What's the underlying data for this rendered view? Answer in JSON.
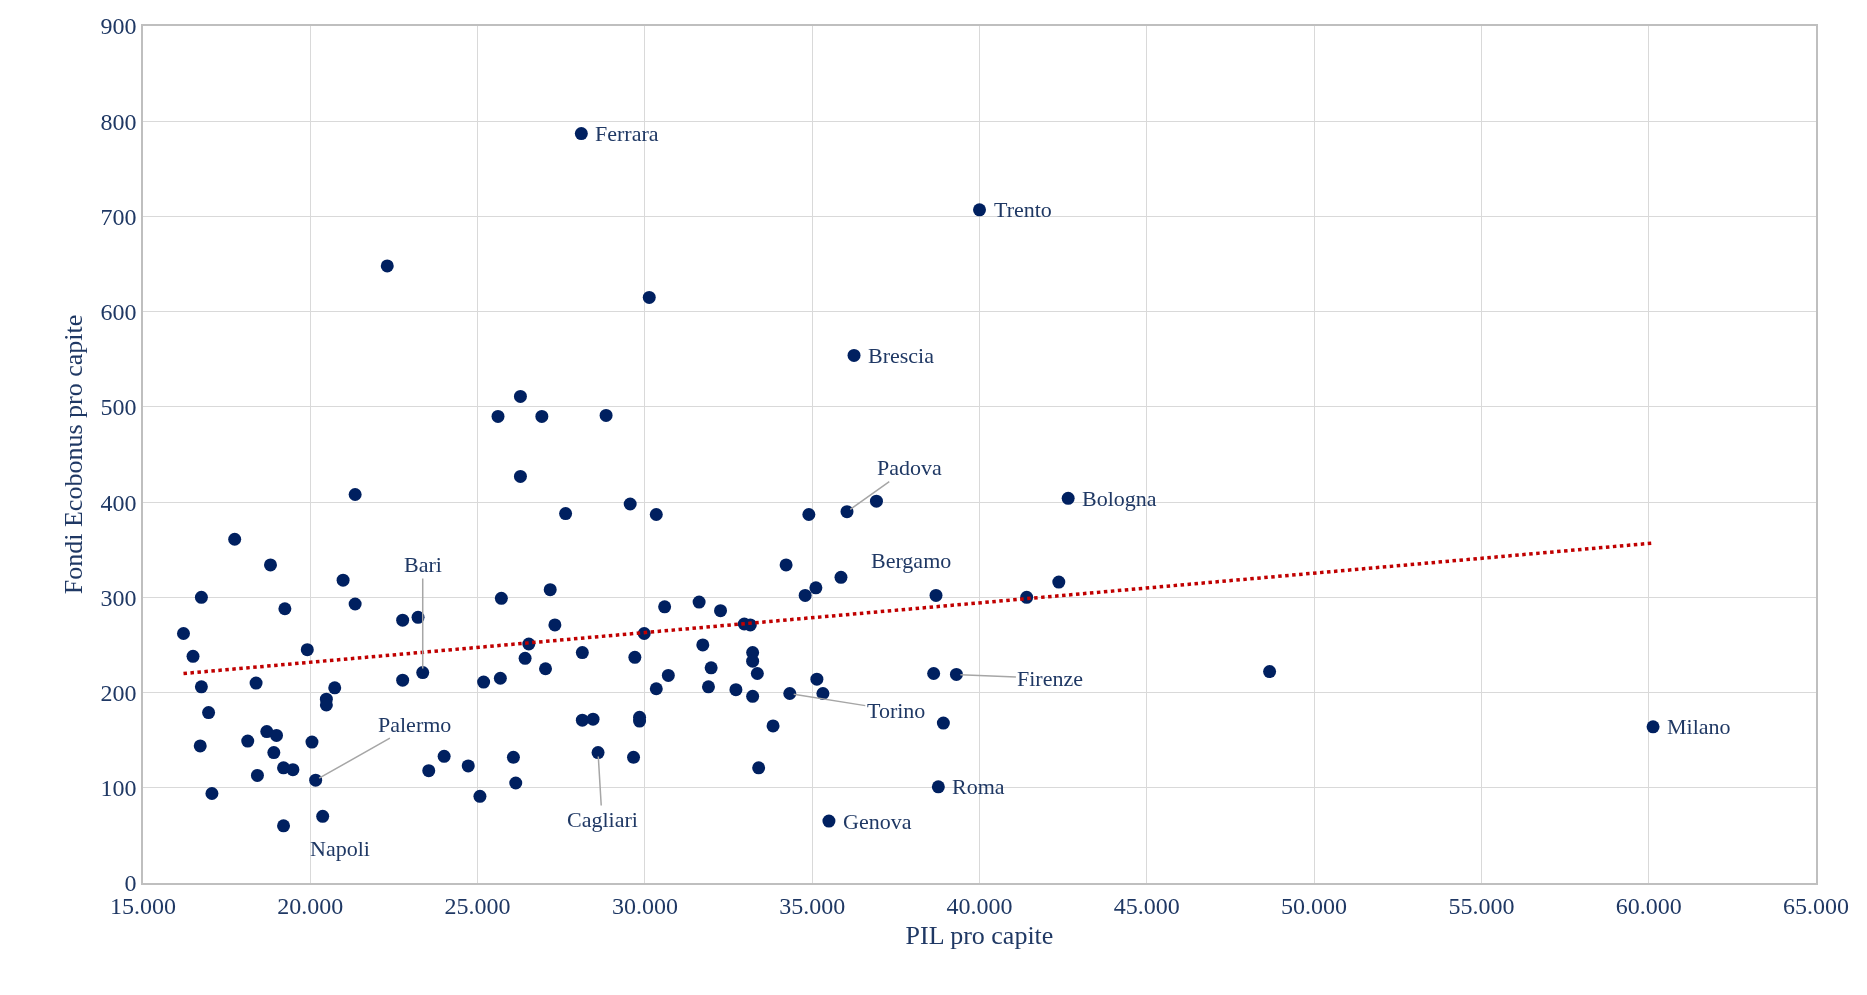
{
  "chart_data": {
    "type": "scatter",
    "xlabel": "PIL pro capite",
    "ylabel": "Fondi Ecobonus pro capite",
    "xlim": [
      15000,
      65000
    ],
    "ylim": [
      0,
      900
    ],
    "xticks": [
      {
        "value": 15000,
        "label": "15.000"
      },
      {
        "value": 20000,
        "label": "20.000"
      },
      {
        "value": 25000,
        "label": "25.000"
      },
      {
        "value": 30000,
        "label": "30.000"
      },
      {
        "value": 35000,
        "label": "35.000"
      },
      {
        "value": 40000,
        "label": "40.000"
      },
      {
        "value": 45000,
        "label": "45.000"
      },
      {
        "value": 50000,
        "label": "50.000"
      },
      {
        "value": 55000,
        "label": "55.000"
      },
      {
        "value": 60000,
        "label": "60.000"
      },
      {
        "value": 65000,
        "label": "65.000"
      }
    ],
    "yticks": [
      0,
      100,
      200,
      300,
      400,
      500,
      600,
      700,
      800,
      900
    ],
    "grid": true,
    "marker": "circle",
    "series": [
      {
        "color": "#002060",
        "x": [
          16210,
          16495,
          16745,
          16745,
          16710,
          16960,
          17060,
          17740,
          18130,
          18380,
          18420,
          18700,
          18810,
          18910,
          18990,
          19200,
          19240,
          19200,
          19480,
          19910,
          20050,
          20160,
          20370,
          20480,
          20480,
          20730,
          20980,
          21340,
          21340,
          22300,
          22760,
          22760,
          23220,
          23360,
          23540,
          24000,
          24720,
          25070,
          25180,
          25610,
          25680,
          25710,
          26070,
          26140,
          26280,
          26280,
          26420,
          26530,
          26920,
          27030,
          27170,
          27310,
          27630,
          28100,
          28130,
          28130,
          28450,
          28600,
          28840,
          29560,
          29700,
          29660,
          29840,
          29840,
          29980,
          30130,
          30340,
          30340,
          30590,
          30700,
          31620,
          31730,
          31900,
          31980,
          32260,
          32720,
          32970,
          33150,
          33220,
          33220,
          33220,
          33360,
          33400,
          33830,
          34330,
          34220,
          34790,
          34900,
          35110,
          35140,
          35320,
          35500,
          35860,
          36040,
          36920,
          36250,
          38700,
          38630,
          38770,
          38920,
          39310,
          40000,
          41410,
          42370,
          42650,
          48670,
          60130
        ],
        "values": [
          262,
          238,
          300,
          206,
          144,
          179,
          94,
          361,
          149,
          210,
          113,
          159,
          334,
          137,
          155,
          121,
          288,
          60,
          119,
          245,
          148,
          108,
          70,
          193,
          187,
          205,
          318,
          408,
          293,
          648,
          276,
          213,
          279,
          221,
          118,
          133,
          123,
          91,
          211,
          490,
          215,
          299,
          132,
          105,
          511,
          427,
          236,
          251,
          490,
          225,
          308,
          271,
          388,
          787,
          171,
          242,
          172,
          137,
          491,
          398,
          237,
          132,
          174,
          170,
          262,
          615,
          387,
          204,
          290,
          218,
          295,
          250,
          206,
          226,
          286,
          203,
          272,
          271,
          242,
          233,
          196,
          220,
          121,
          165,
          199,
          334,
          302,
          387,
          310,
          214,
          199,
          65,
          321,
          390,
          401,
          554,
          302,
          220,
          101,
          168,
          219,
          707,
          300,
          316,
          404,
          222,
          164
        ]
      },
      {
        "type": "line",
        "color": "#c00000",
        "line_style": "dotted",
        "marker": "none",
        "x": [
          16210,
          60130
        ],
        "values": [
          220,
          357
        ]
      }
    ],
    "annotations": [
      {
        "text": "Ferrara",
        "x": 28100,
        "y": 787
      },
      {
        "text": "Trento",
        "x": 40000,
        "y": 707
      },
      {
        "text": "Brescia",
        "x": 36250,
        "y": 554
      },
      {
        "text": "Padova",
        "x": 36040,
        "y": 390
      },
      {
        "text": "Bologna",
        "x": 42650,
        "y": 404
      },
      {
        "text": "Bergamo",
        "x": 35860,
        "y": 321
      },
      {
        "text": "Bari",
        "x": 23360,
        "y": 221
      },
      {
        "text": "Palermo",
        "x": 20160,
        "y": 108
      },
      {
        "text": "Napoli",
        "x": 20370,
        "y": 70
      },
      {
        "text": "Cagliari",
        "x": 28600,
        "y": 137
      },
      {
        "text": "Torino",
        "x": 34330,
        "y": 199
      },
      {
        "text": "Firenze",
        "x": 39310,
        "y": 219
      },
      {
        "text": "Genova",
        "x": 35500,
        "y": 65
      },
      {
        "text": "Roma",
        "x": 38770,
        "y": 101
      },
      {
        "text": "Milano",
        "x": 60130,
        "y": 164
      }
    ]
  }
}
